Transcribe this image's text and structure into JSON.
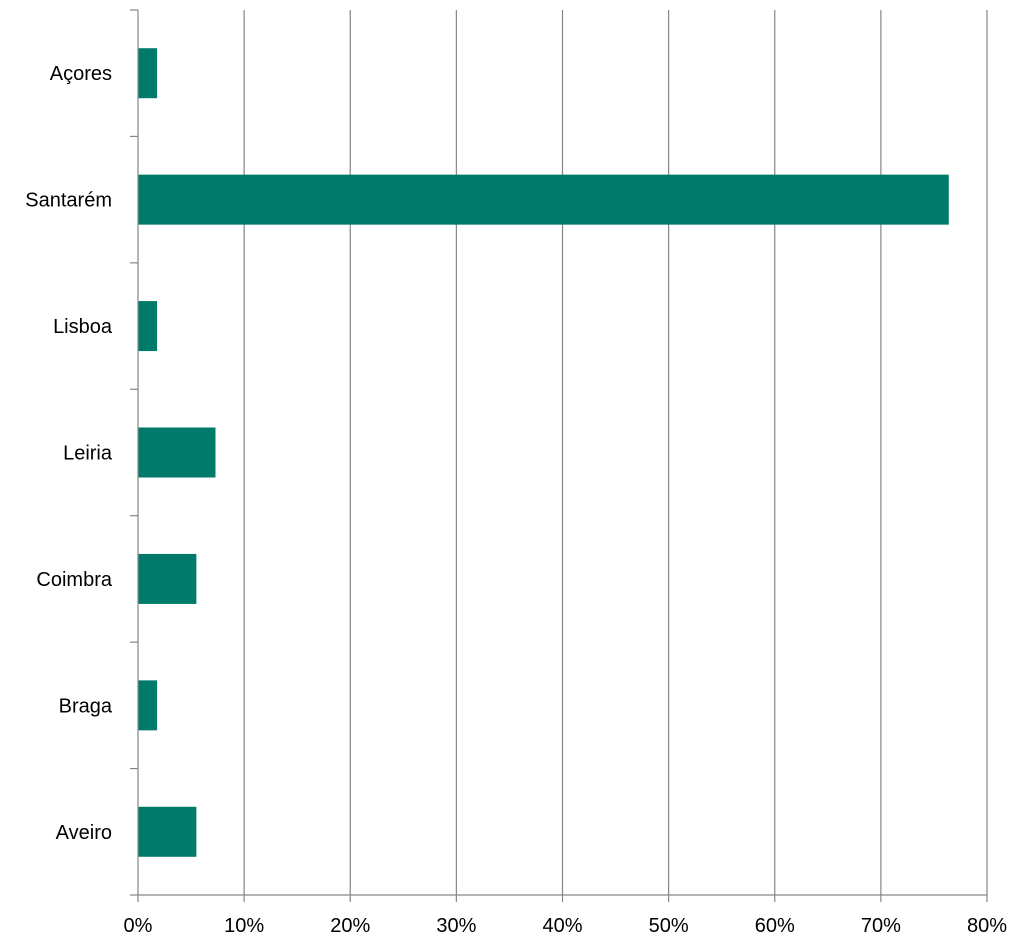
{
  "chart_data": {
    "type": "bar",
    "orientation": "horizontal",
    "categories": [
      "Açores",
      "Santarém",
      "Lisboa",
      "Leiria",
      "Coimbra",
      "Braga",
      "Aveiro"
    ],
    "values": [
      1.8,
      76.4,
      1.8,
      7.3,
      5.5,
      1.8,
      5.5
    ],
    "value_unit": "%",
    "xlim": [
      0,
      80
    ],
    "x_ticks": [
      0,
      10,
      20,
      30,
      40,
      50,
      60,
      70,
      80
    ],
    "x_tick_labels": [
      "0%",
      "10%",
      "20%",
      "30%",
      "40%",
      "50%",
      "60%",
      "70%",
      "80%"
    ],
    "title": "",
    "xlabel": "",
    "ylabel": "",
    "grid": "vertical",
    "legend": "none",
    "bar_color": "#007A6A",
    "grid_color": "#868686"
  }
}
